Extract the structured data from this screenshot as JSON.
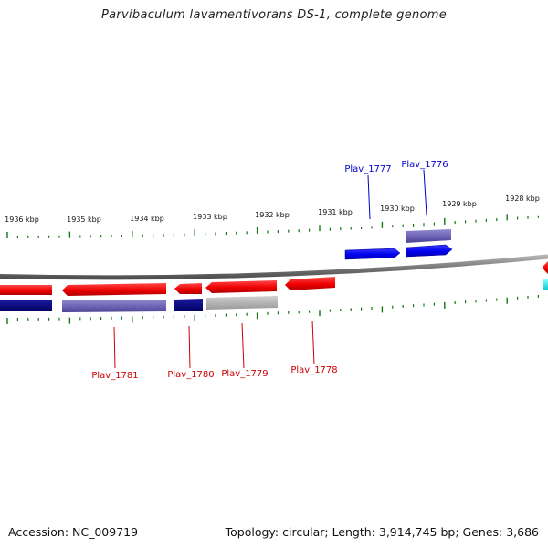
{
  "title": "Parvibaculum lavamentivorans DS-1, complete genome",
  "footer": {
    "accession": "Accession: NC_009719",
    "summary": "Topology: circular; Length: 3,914,745 bp; Genes: 3,686"
  },
  "scale": {
    "ticks": [
      "1936 kbp",
      "1935 kbp",
      "1934 kbp",
      "1933 kbp",
      "1932 kbp",
      "1931 kbp",
      "1930 kbp",
      "1929 kbp",
      "1928 kbp"
    ]
  },
  "gene_labels": {
    "top": [
      "Plav_1777",
      "Plav_1776"
    ],
    "bottom": [
      "Plav_1781",
      "Plav_1780",
      "Plav_1779",
      "Plav_1778"
    ]
  },
  "colors": {
    "forward_gene": "#0000ee",
    "reverse_gene": "#ee0000",
    "forward_label": "#0000cc",
    "reverse_label": "#cc0000",
    "tick": "#117711",
    "backbone": "#808080",
    "cog_navy": "#000080",
    "cog_purple": "#6a5fb0",
    "cog_gray": "#a8a8a8",
    "cog_cyan": "#00e5ee"
  }
}
